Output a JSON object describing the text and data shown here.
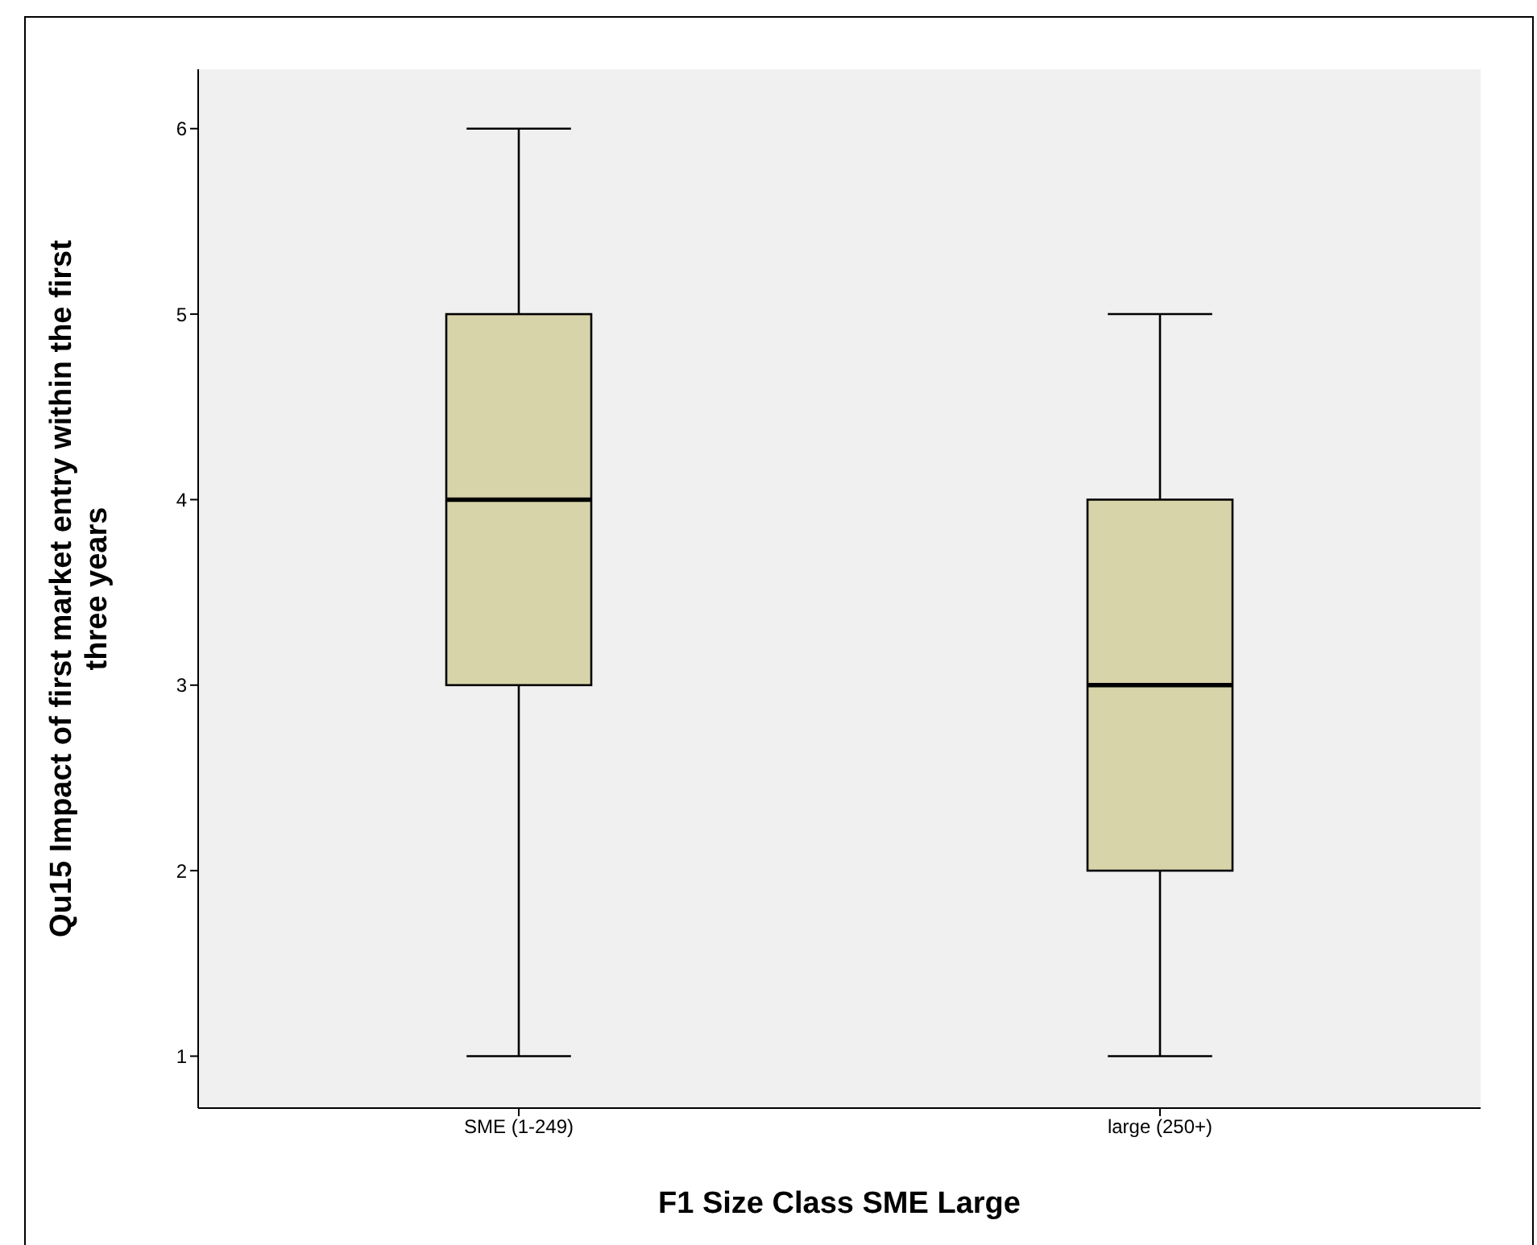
{
  "chart_data": {
    "type": "box",
    "xlabel": "F1 Size Class SME Large",
    "ylabel": "Qu15 Impact of first market entry within the first three years",
    "categories": [
      "SME (1-249)",
      "large (250+)"
    ],
    "boxes": [
      {
        "low": 1,
        "q1": 3,
        "median": 4,
        "q3": 5,
        "high": 6
      },
      {
        "low": 1,
        "q1": 2,
        "median": 3,
        "q3": 4,
        "high": 5
      }
    ],
    "color": "#d8d4a9",
    "ylim": [
      0.72,
      6.32
    ],
    "yticks": [
      1,
      2,
      3,
      4,
      5,
      6
    ]
  }
}
